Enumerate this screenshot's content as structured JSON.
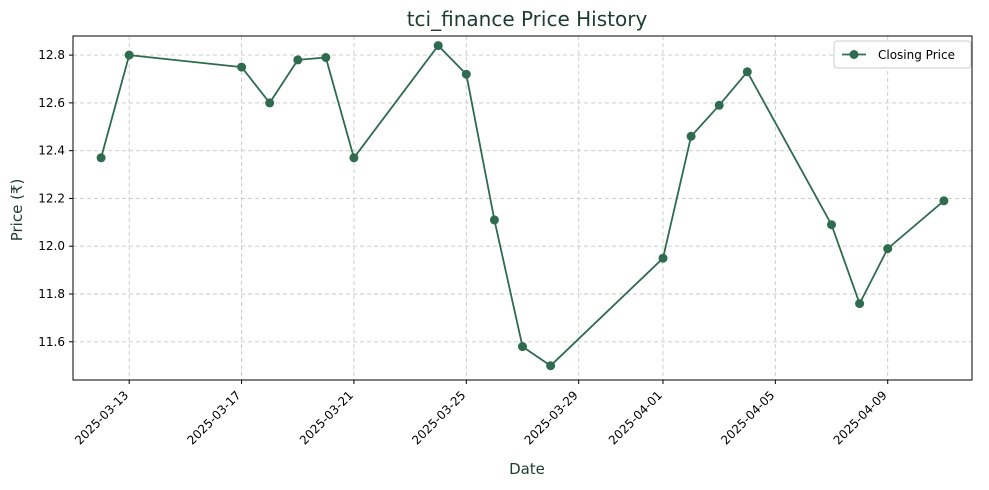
{
  "chart_data": {
    "type": "line",
    "title": "tci_finance Price History",
    "xlabel": "Date",
    "ylabel": "Price (₹)",
    "x_tick_labels": [
      "2025-03-13",
      "2025-03-17",
      "2025-03-21",
      "2025-03-25",
      "2025-03-29",
      "2025-04-01",
      "2025-04-05",
      "2025-04-09"
    ],
    "y_tick_labels": [
      "11.6",
      "11.8",
      "12.0",
      "12.2",
      "12.4",
      "12.6",
      "12.8"
    ],
    "ylim": [
      11.44,
      12.88
    ],
    "xlim": [
      "2025-03-11",
      "2025-04-12"
    ],
    "grid": true,
    "legend_position": "top-right",
    "colors": {
      "line": "#2e6b4f",
      "title": "#1e3d2f",
      "grid": "#c8c8c8"
    },
    "series": [
      {
        "name": "Closing Price",
        "x": [
          "2025-03-12",
          "2025-03-13",
          "2025-03-17",
          "2025-03-18",
          "2025-03-19",
          "2025-03-20",
          "2025-03-21",
          "2025-03-24",
          "2025-03-25",
          "2025-03-26",
          "2025-03-27",
          "2025-03-28",
          "2025-04-01",
          "2025-04-02",
          "2025-04-03",
          "2025-04-04",
          "2025-04-07",
          "2025-04-08",
          "2025-04-09",
          "2025-04-11"
        ],
        "values": [
          12.37,
          12.8,
          12.75,
          12.6,
          12.78,
          12.79,
          12.37,
          12.84,
          12.72,
          12.11,
          11.58,
          11.5,
          11.95,
          12.46,
          12.59,
          12.73,
          12.09,
          11.76,
          11.99,
          12.19
        ]
      }
    ]
  }
}
